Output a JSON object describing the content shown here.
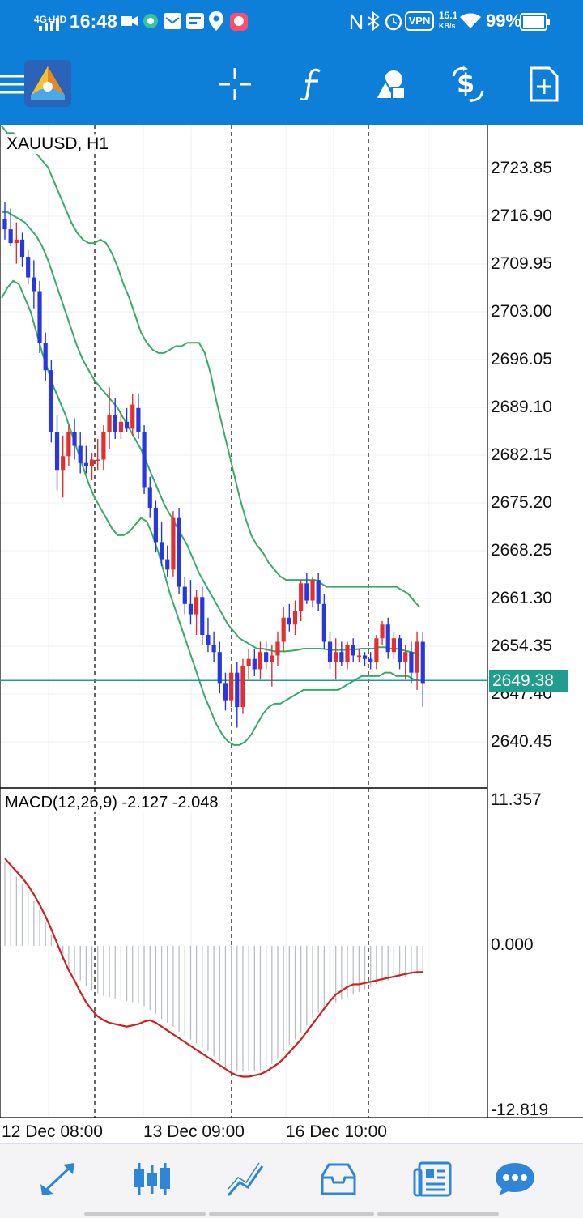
{
  "status_bar": {
    "network": "4G+HD",
    "time": "16:48",
    "vpn_label": "VPN",
    "net_speed_value": "15.1",
    "net_speed_unit": "KB/s",
    "battery": "99%"
  },
  "toolbar": {
    "icons": [
      "menu-icon",
      "metatrader-logo",
      "crosshair-icon",
      "indicator-f-icon",
      "objects-icon",
      "trade-dollar-icon",
      "new-document-icon"
    ]
  },
  "chart": {
    "symbol_label": "XAUUSD, H1",
    "current_price": "2649.38",
    "price_axis": [
      "2723.85",
      "2716.90",
      "2709.95",
      "2703.00",
      "2696.05",
      "2689.10",
      "2682.15",
      "2675.20",
      "2668.25",
      "2661.30",
      "2654.35",
      "2647.40",
      "2640.45"
    ],
    "indicator_label": "MACD(12,26,9) -2.127 -2.048",
    "indicator_axis": [
      "11.357",
      "0.000",
      "-12.819"
    ],
    "time_axis": [
      "12 Dec 08:00",
      "13 Dec 09:00",
      "16 Dec 10:00"
    ]
  },
  "colors": {
    "bar": "#0d7fd8",
    "bull": "#e03030",
    "bear": "#2838e0",
    "band": "#3aaa6a",
    "signal": "#d21e1e",
    "price_line": "#1f9e8e"
  },
  "chart_data": [
    {
      "type": "candlestick",
      "title": "XAUUSD, H1",
      "ylim": [
        2637.0,
        2728.0
      ],
      "y_ticks": [
        2723.85,
        2716.9,
        2709.95,
        2703.0,
        2696.05,
        2689.1,
        2682.15,
        2675.2,
        2668.25,
        2661.3,
        2654.35,
        2647.4,
        2640.45
      ],
      "current_price": 2649.38,
      "x_labels": [
        "12 Dec 08:00",
        "13 Dec 09:00",
        "16 Dec 10:00"
      ],
      "ohlc": [
        [
          2716.5,
          2719.0,
          2713.5,
          2715.0
        ],
        [
          2715.0,
          2718.0,
          2712.5,
          2713.0
        ],
        [
          2713.0,
          2716.0,
          2710.0,
          2713.5
        ],
        [
          2713.5,
          2714.5,
          2709.5,
          2711.0
        ],
        [
          2711.0,
          2712.0,
          2707.0,
          2708.0
        ],
        [
          2708.0,
          2710.5,
          2703.5,
          2706.0
        ],
        [
          2706.0,
          2707.5,
          2697.0,
          2698.5
        ],
        [
          2698.5,
          2700.0,
          2693.0,
          2694.5
        ],
        [
          2694.5,
          2696.0,
          2684.0,
          2685.5
        ],
        [
          2685.5,
          2688.0,
          2677.0,
          2680.0
        ],
        [
          2680.0,
          2685.0,
          2676.0,
          2682.0
        ],
        [
          2682.0,
          2686.5,
          2680.5,
          2685.5
        ],
        [
          2685.5,
          2687.5,
          2681.5,
          2683.5
        ],
        [
          2683.5,
          2685.5,
          2679.5,
          2681.0
        ],
        [
          2681.0,
          2683.5,
          2679.5,
          2680.5
        ],
        [
          2680.5,
          2682.5,
          2678.5,
          2681.5
        ],
        [
          2681.5,
          2684.5,
          2680.0,
          2681.5
        ],
        [
          2681.5,
          2686.5,
          2680.0,
          2685.5
        ],
        [
          2685.5,
          2692.0,
          2683.0,
          2688.0
        ],
        [
          2688.0,
          2690.5,
          2684.5,
          2685.5
        ],
        [
          2685.5,
          2688.5,
          2684.5,
          2687.0
        ],
        [
          2687.0,
          2689.0,
          2685.5,
          2686.0
        ],
        [
          2686.0,
          2691.0,
          2685.0,
          2689.5
        ],
        [
          2689.0,
          2691.0,
          2684.5,
          2685.5
        ],
        [
          2685.5,
          2686.5,
          2676.5,
          2677.5
        ],
        [
          2677.5,
          2679.0,
          2673.0,
          2674.5
        ],
        [
          2674.5,
          2675.5,
          2668.0,
          2669.5
        ],
        [
          2669.5,
          2672.5,
          2666.0,
          2667.0
        ],
        [
          2667.0,
          2669.0,
          2664.5,
          2665.5
        ],
        [
          2665.5,
          2674.0,
          2664.5,
          2673.0
        ],
        [
          2673.0,
          2674.5,
          2662.0,
          2663.0
        ],
        [
          2663.0,
          2664.5,
          2659.0,
          2660.5
        ],
        [
          2660.5,
          2664.0,
          2657.5,
          2659.0
        ],
        [
          2659.0,
          2662.5,
          2656.0,
          2661.5
        ],
        [
          2661.5,
          2663.0,
          2654.5,
          2656.0
        ],
        [
          2656.0,
          2658.5,
          2653.5,
          2654.5
        ],
        [
          2654.5,
          2656.5,
          2652.0,
          2653.5
        ],
        [
          2653.5,
          2655.0,
          2647.5,
          2649.0
        ],
        [
          2649.0,
          2650.5,
          2645.0,
          2646.5
        ],
        [
          2646.5,
          2651.5,
          2645.5,
          2650.5
        ],
        [
          2650.5,
          2652.0,
          2642.5,
          2645.5
        ],
        [
          2645.5,
          2652.5,
          2644.5,
          2651.5
        ],
        [
          2651.5,
          2654.0,
          2649.5,
          2652.5
        ],
        [
          2652.5,
          2654.0,
          2650.0,
          2651.0
        ],
        [
          2651.0,
          2655.0,
          2649.5,
          2653.5
        ],
        [
          2653.5,
          2655.0,
          2651.0,
          2652.0
        ],
        [
          2652.0,
          2654.5,
          2648.5,
          2653.0
        ],
        [
          2653.0,
          2656.5,
          2651.5,
          2655.0
        ],
        [
          2655.0,
          2660.0,
          2653.5,
          2658.5
        ],
        [
          2658.5,
          2660.5,
          2656.5,
          2657.5
        ],
        [
          2657.5,
          2661.0,
          2656.0,
          2659.5
        ],
        [
          2659.5,
          2664.0,
          2658.0,
          2663.5
        ],
        [
          2663.5,
          2665.0,
          2660.5,
          2661.0
        ],
        [
          2661.0,
          2664.5,
          2660.0,
          2664.0
        ],
        [
          2664.0,
          2665.0,
          2659.5,
          2660.5
        ],
        [
          2660.5,
          2662.0,
          2654.0,
          2655.0
        ],
        [
          2655.0,
          2656.5,
          2651.0,
          2652.0
        ],
        [
          2652.0,
          2655.5,
          2649.5,
          2653.5
        ],
        [
          2653.5,
          2655.0,
          2651.5,
          2652.0
        ],
        [
          2652.0,
          2655.0,
          2651.0,
          2654.5
        ],
        [
          2654.5,
          2655.5,
          2652.0,
          2653.0
        ],
        [
          2653.0,
          2654.0,
          2652.0,
          2653.0
        ],
        [
          2653.0,
          2653.5,
          2651.5,
          2652.5
        ],
        [
          2652.5,
          2653.5,
          2651.0,
          2652.0
        ],
        [
          2652.0,
          2656.0,
          2651.0,
          2655.5
        ],
        [
          2655.5,
          2658.0,
          2654.5,
          2657.5
        ],
        [
          2657.5,
          2658.5,
          2652.5,
          2653.5
        ],
        [
          2653.5,
          2656.5,
          2652.5,
          2655.5
        ],
        [
          2655.5,
          2656.0,
          2651.0,
          2652.0
        ],
        [
          2652.0,
          2654.5,
          2649.5,
          2653.5
        ],
        [
          2653.5,
          2655.0,
          2649.0,
          2650.5
        ],
        [
          2650.5,
          2656.5,
          2648.0,
          2655.0
        ],
        [
          2655.0,
          2656.5,
          2645.5,
          2649.0
        ]
      ],
      "bollinger_bands": {
        "upper": [
          2730,
          2729,
          2729,
          2728,
          2727.5,
          2727,
          2726,
          2725,
          2724,
          2722,
          2720,
          2718,
          2716,
          2714.5,
          2713.5,
          2713,
          2713,
          2713.5,
          2713,
          2711.5,
          2709.5,
          2707,
          2705,
          2702.5,
          2700,
          2698.5,
          2697.5,
          2697,
          2697,
          2697.5,
          2698,
          2698,
          2698.5,
          2698.5,
          2698.5,
          2697,
          2694,
          2690,
          2686.5,
          2683,
          2679.5,
          2676,
          2673,
          2670.5,
          2669,
          2668,
          2666.5,
          2665.5,
          2664.5,
          2664,
          2664,
          2664,
          2664,
          2664,
          2664,
          2663.5,
          2663,
          2663,
          2663,
          2663,
          2663,
          2663,
          2663,
          2663,
          2663,
          2663,
          2663,
          2663,
          2663,
          2662.5,
          2662,
          2661,
          2660
        ],
        "middle": [
          2717.5,
          2717.5,
          2717,
          2716.5,
          2716,
          2715,
          2714,
          2712.5,
          2710.5,
          2708,
          2705.5,
          2703,
          2700.5,
          2698,
          2696,
          2694.5,
          2693,
          2692,
          2691,
          2690,
          2689,
          2687.5,
          2686,
          2684.5,
          2683,
          2681,
          2679,
          2677,
          2675,
          2673.5,
          2672,
          2670.5,
          2669,
          2667,
          2665,
          2663.5,
          2662,
          2660.5,
          2659,
          2657.5,
          2656.5,
          2655.5,
          2655,
          2654.5,
          2654,
          2654,
          2653.8,
          2653.6,
          2653.6,
          2653.6,
          2653.7,
          2653.8,
          2654,
          2654,
          2654,
          2654,
          2653.9,
          2653.8,
          2653.8,
          2653.8,
          2653.9,
          2653.9,
          2654,
          2654,
          2654,
          2654.2,
          2654.2,
          2654,
          2654,
          2653.8,
          2653.6,
          2653.4,
          2653
        ],
        "lower": [
          2705,
          2706.5,
          2707.5,
          2707,
          2705,
          2703,
          2700,
          2697,
          2694.5,
          2692,
          2690,
          2688,
          2685.5,
          2683,
          2680.5,
          2678,
          2676,
          2674.5,
          2673,
          2671.5,
          2670.5,
          2670.5,
          2671,
          2672,
          2673,
          2672.5,
          2670.5,
          2668,
          2665,
          2662,
          2659.5,
          2657,
          2654.5,
          2652,
          2649.5,
          2647,
          2645,
          2643,
          2641.5,
          2640.5,
          2640,
          2640,
          2640.5,
          2641.5,
          2643,
          2644.5,
          2645.5,
          2646,
          2646,
          2646.5,
          2647,
          2647.5,
          2648,
          2648,
          2648,
          2648,
          2648,
          2648,
          2648,
          2648.5,
          2649,
          2649.5,
          2650,
          2650,
          2650,
          2650,
          2650.5,
          2650.5,
          2650,
          2650,
          2650,
          2649.5,
          2649.5
        ]
      }
    },
    {
      "type": "bar",
      "title": "MACD(12,26,9)",
      "ylim": [
        -12.819,
        11.357
      ],
      "y_ticks": [
        11.357,
        0.0,
        -12.819
      ],
      "macd_main": [
        6.5,
        6.0,
        5.4,
        4.8,
        4.2,
        3.5,
        2.8,
        1.9,
        0.9,
        -0.2,
        -1.1,
        -1.8,
        -2.3,
        -2.7,
        -3.1,
        -3.4,
        -3.7,
        -3.9,
        -4.0,
        -4.1,
        -4.2,
        -4.3,
        -4.4,
        -4.5,
        -4.7,
        -5.0,
        -5.3,
        -5.7,
        -6.0,
        -6.3,
        -6.7,
        -7.0,
        -7.3,
        -7.6,
        -7.9,
        -8.2,
        -8.6,
        -9.0,
        -9.6,
        -9.8,
        -9.8,
        -9.8,
        -9.8,
        -9.8,
        -9.7,
        -9.5,
        -9.2,
        -8.8,
        -8.2,
        -7.7,
        -7.3,
        -6.8,
        -6.2,
        -5.6,
        -5.2,
        -4.9,
        -4.6,
        -4.4,
        -4.2,
        -4.0,
        -3.8,
        -3.6,
        -3.4,
        -3.2,
        -3.0,
        -2.8,
        -2.7,
        -2.6,
        -2.5,
        -2.4,
        -2.3,
        -2.2,
        -2.127
      ],
      "signal": [
        6.8,
        6.3,
        5.8,
        5.3,
        4.7,
        4.0,
        3.2,
        2.3,
        1.3,
        0.2,
        -0.9,
        -1.9,
        -2.7,
        -3.6,
        -4.4,
        -5.0,
        -5.5,
        -5.8,
        -6.0,
        -6.1,
        -6.2,
        -6.3,
        -6.2,
        -6.1,
        -5.9,
        -5.8,
        -6.0,
        -6.3,
        -6.6,
        -6.9,
        -7.2,
        -7.5,
        -7.8,
        -8.1,
        -8.4,
        -8.7,
        -9.0,
        -9.3,
        -9.6,
        -9.9,
        -10.1,
        -10.2,
        -10.2,
        -10.1,
        -10.0,
        -9.8,
        -9.5,
        -9.2,
        -8.8,
        -8.3,
        -7.8,
        -7.3,
        -6.7,
        -6.1,
        -5.5,
        -4.9,
        -4.3,
        -3.8,
        -3.5,
        -3.2,
        -3.0,
        -3.0,
        -2.9,
        -2.8,
        -2.7,
        -2.6,
        -2.5,
        -2.4,
        -2.3,
        -2.2,
        -2.1,
        -2.05,
        -2.048
      ]
    }
  ],
  "bottom_nav": {
    "items": [
      "quotes-icon",
      "chart-icon",
      "trade-icon",
      "history-icon",
      "news-icon",
      "chat-icon"
    ],
    "active": "chart-icon"
  }
}
